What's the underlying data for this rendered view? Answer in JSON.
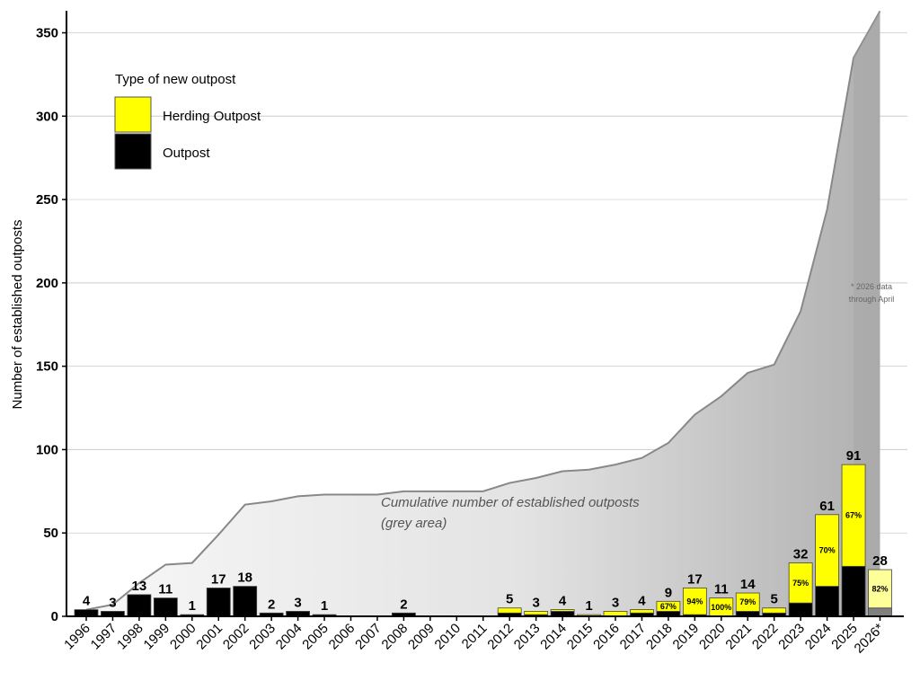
{
  "chart_data": {
    "type": "bar",
    "ylabel": "Number of established outposts",
    "xlabel": "",
    "ylim": [
      0,
      365
    ],
    "yticks": [
      0,
      50,
      100,
      150,
      200,
      250,
      300,
      350
    ],
    "grid": "horizontal",
    "legend": {
      "title": "Type of new outpost",
      "placement": "top-left",
      "entries": [
        {
          "name": "Herding Outpost",
          "color": "#ffff00"
        },
        {
          "name": "Outpost",
          "color": "#000000"
        }
      ]
    },
    "categories": [
      "1996",
      "1997",
      "1998",
      "1999",
      "2000",
      "2001",
      "2002",
      "2003",
      "2004",
      "2005",
      "2006",
      "2007",
      "2008",
      "2009",
      "2010",
      "2011",
      "2012",
      "2013",
      "2014",
      "2015",
      "2016",
      "2017",
      "2018",
      "2019",
      "2020",
      "2021",
      "2022",
      "2023",
      "2024",
      "2025",
      "2026*"
    ],
    "series": [
      {
        "name": "Outpost",
        "values": [
          4,
          3,
          13,
          11,
          1,
          17,
          18,
          2,
          3,
          1,
          0,
          0,
          2,
          0,
          0,
          0,
          2,
          1,
          3,
          0,
          0,
          2,
          3,
          1,
          0,
          3,
          2,
          8,
          18,
          30,
          5
        ]
      },
      {
        "name": "Herding Outpost",
        "values": [
          0,
          0,
          0,
          0,
          0,
          0,
          0,
          0,
          0,
          0,
          0,
          0,
          0,
          0,
          0,
          0,
          3,
          2,
          1,
          1,
          3,
          2,
          6,
          16,
          11,
          11,
          3,
          24,
          43,
          61,
          23
        ]
      }
    ],
    "totals": [
      4,
      3,
      13,
      11,
      1,
      17,
      18,
      2,
      3,
      1,
      0,
      0,
      2,
      0,
      0,
      0,
      5,
      3,
      4,
      1,
      3,
      4,
      9,
      17,
      11,
      14,
      5,
      32,
      61,
      91,
      28
    ],
    "total_labels": [
      "4",
      "3",
      "13",
      "11",
      "1",
      "17",
      "18",
      "2",
      "3",
      "1",
      "",
      "",
      "2",
      "",
      "",
      "",
      "5",
      "3",
      "4",
      "1",
      "3",
      "4",
      "9",
      "17",
      "11",
      "14",
      "5",
      "32",
      "61",
      "91",
      "28"
    ],
    "percent_labels": [
      "",
      "",
      "",
      "",
      "",
      "",
      "",
      "",
      "",
      "",
      "",
      "",
      "",
      "",
      "",
      "",
      "",
      "",
      "",
      "",
      "",
      "",
      "67%",
      "94%",
      "100%",
      "79%",
      "",
      "75%",
      "70%",
      "67%",
      "82%"
    ],
    "cumulative": [
      4,
      7,
      20,
      31,
      32,
      49,
      67,
      69,
      72,
      73,
      73,
      73,
      75,
      75,
      75,
      75,
      80,
      83,
      87,
      88,
      91,
      95,
      104,
      121,
      132,
      146,
      151,
      183,
      244,
      335,
      363
    ],
    "cumulative_label": [
      "Cumulative number of established outposts",
      "(grey area)"
    ],
    "footnote": [
      "* 2026 data",
      "through April"
    ],
    "colors": {
      "herding": "#ffff00",
      "outpost": "#000000",
      "area": "#d9d9d9",
      "area_line": "#888888",
      "partial_herding": "#ffff99",
      "partial_outpost": "#808080",
      "grid": "#cccccc"
    }
  }
}
